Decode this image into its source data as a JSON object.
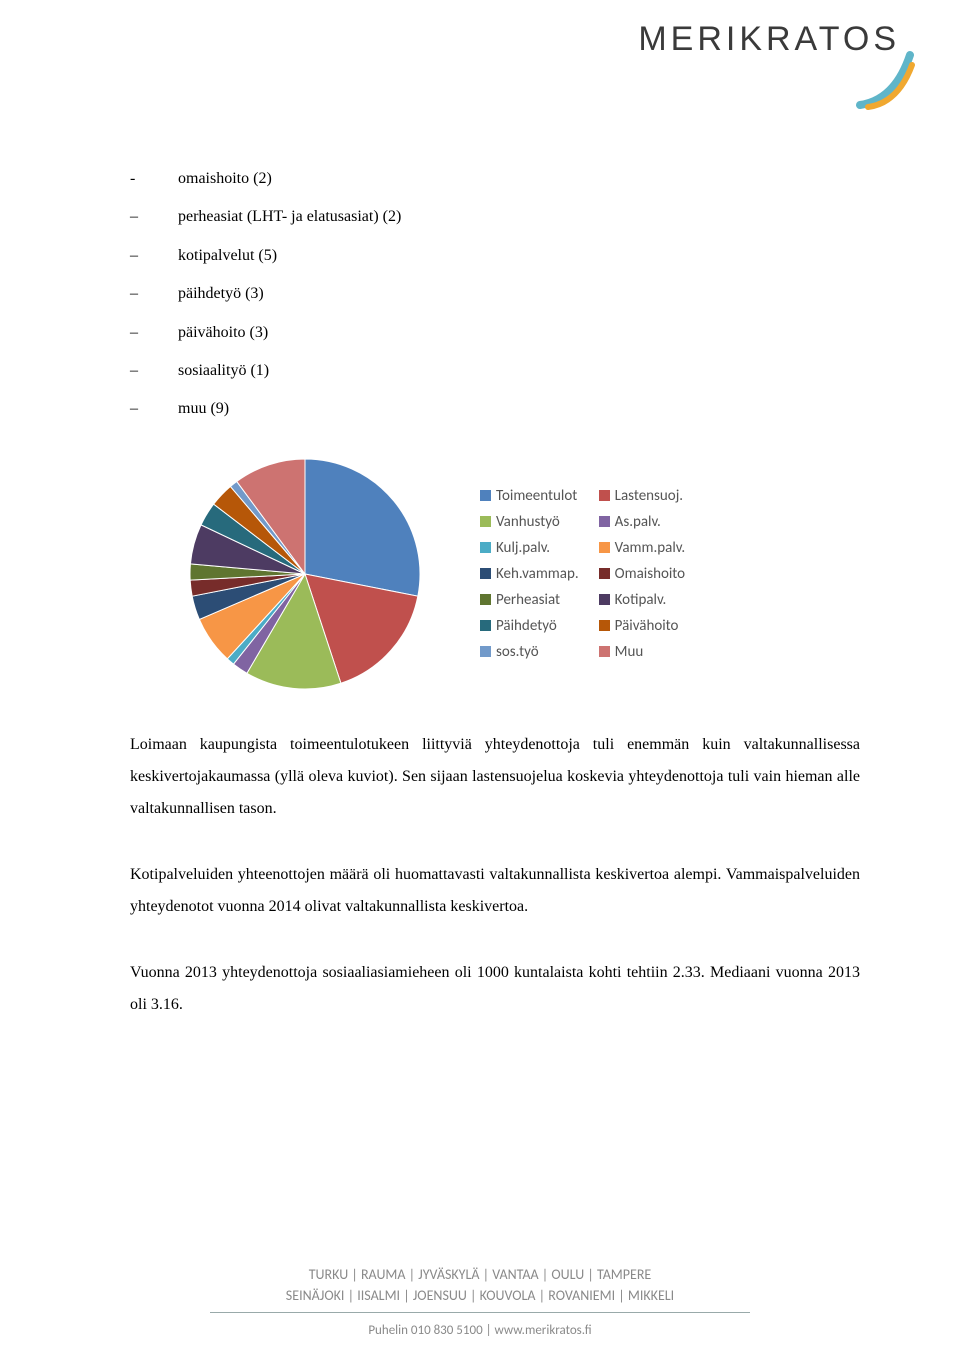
{
  "logo": {
    "text": "MERIKRATOS"
  },
  "bullet_list": [
    {
      "style": "dash",
      "text": "omaishoito (2)"
    },
    {
      "style": "long",
      "text": "perheasiat (LHT- ja elatusasiat) (2)"
    },
    {
      "style": "long",
      "text": "kotipalvelut (5)"
    },
    {
      "style": "long",
      "text": "päihdetyö (3)"
    },
    {
      "style": "long",
      "text": "päivähoito (3)"
    },
    {
      "style": "long",
      "text": "sosiaalityö (1)"
    },
    {
      "style": "long",
      "text": "muu (9)"
    }
  ],
  "pie_chart": {
    "type": "pie",
    "background_color": "#ffffff",
    "radius": 115,
    "label_fontsize": 15,
    "label_color": "#555555",
    "slices": [
      {
        "label": "Toimeentulot",
        "value": 25,
        "color": "#4f81bd"
      },
      {
        "label": "Lastensuoj.",
        "value": 15,
        "color": "#c0504d"
      },
      {
        "label": "Vanhustyö",
        "value": 12,
        "color": "#9bbb59"
      },
      {
        "label": "As.palv.",
        "value": 2,
        "color": "#8064a2"
      },
      {
        "label": "Kulj.palv.",
        "value": 1,
        "color": "#4bacc6"
      },
      {
        "label": "Vamm.palv.",
        "value": 6,
        "color": "#f79646"
      },
      {
        "label": "Keh.vammap.",
        "value": 3,
        "color": "#2c4d75"
      },
      {
        "label": "Omaishoito",
        "value": 2,
        "color": "#772c2a"
      },
      {
        "label": "Perheasiat",
        "value": 2,
        "color": "#5f7530"
      },
      {
        "label": "Kotipalv.",
        "value": 5,
        "color": "#4d3b62"
      },
      {
        "label": "Päihdetyö",
        "value": 3,
        "color": "#276a7c"
      },
      {
        "label": "Päivähoito",
        "value": 3,
        "color": "#b65708"
      },
      {
        "label": "sos.työ",
        "value": 1,
        "color": "#729aca"
      },
      {
        "label": "Muu",
        "value": 9,
        "color": "#cd7371"
      }
    ],
    "legend_order": [
      [
        "Toimeentulot",
        "Lastensuoj."
      ],
      [
        "Vanhustyö",
        "As.palv."
      ],
      [
        "Kulj.palv.",
        "Vamm.palv."
      ],
      [
        "Keh.vammap.",
        "Omaishoito"
      ],
      [
        "Perheasiat",
        "Kotipalv."
      ],
      [
        "Päihdetyö",
        "Päivähoito"
      ],
      [
        "sos.työ",
        "Muu"
      ]
    ]
  },
  "paragraphs": [
    "Loimaan kaupungista toimeentulotukeen liittyviä yhteydenottoja tuli enemmän kuin valtakunnallisessa keskivertojakaumassa (yllä oleva kuviot). Sen sijaan lastensuojelua koskevia yhteydenottoja tuli vain hieman alle valtakunnallisen tason.",
    "Kotipalveluiden yhteenottojen määrä oli huomattavasti valtakunnallista keskivertoa alempi. Vammaispalveluiden yhteydenotot vuonna 2014 olivat valtakunnallista keskivertoa.",
    "Vuonna 2013 yhteydenottoja sosiaaliasiamieheen oli 1000 kuntalaista kohti tehtiin 2.33. Mediaani vuonna 2013 oli 3.16."
  ],
  "footer": {
    "cities_line1": "TURKU  |  RAUMA  |  JYVÄSKYLÄ  |  VANTAA  |  OULU  |  TAMPERE",
    "cities_line2": "SEINÄJOKI  |  IISALMI  |  JOENSUU  |  KOUVOLA  |  ROVANIEMI  |  MIKKELI",
    "contact": "Puhelin 010 830 5100  |  www.merikratos.fi"
  }
}
